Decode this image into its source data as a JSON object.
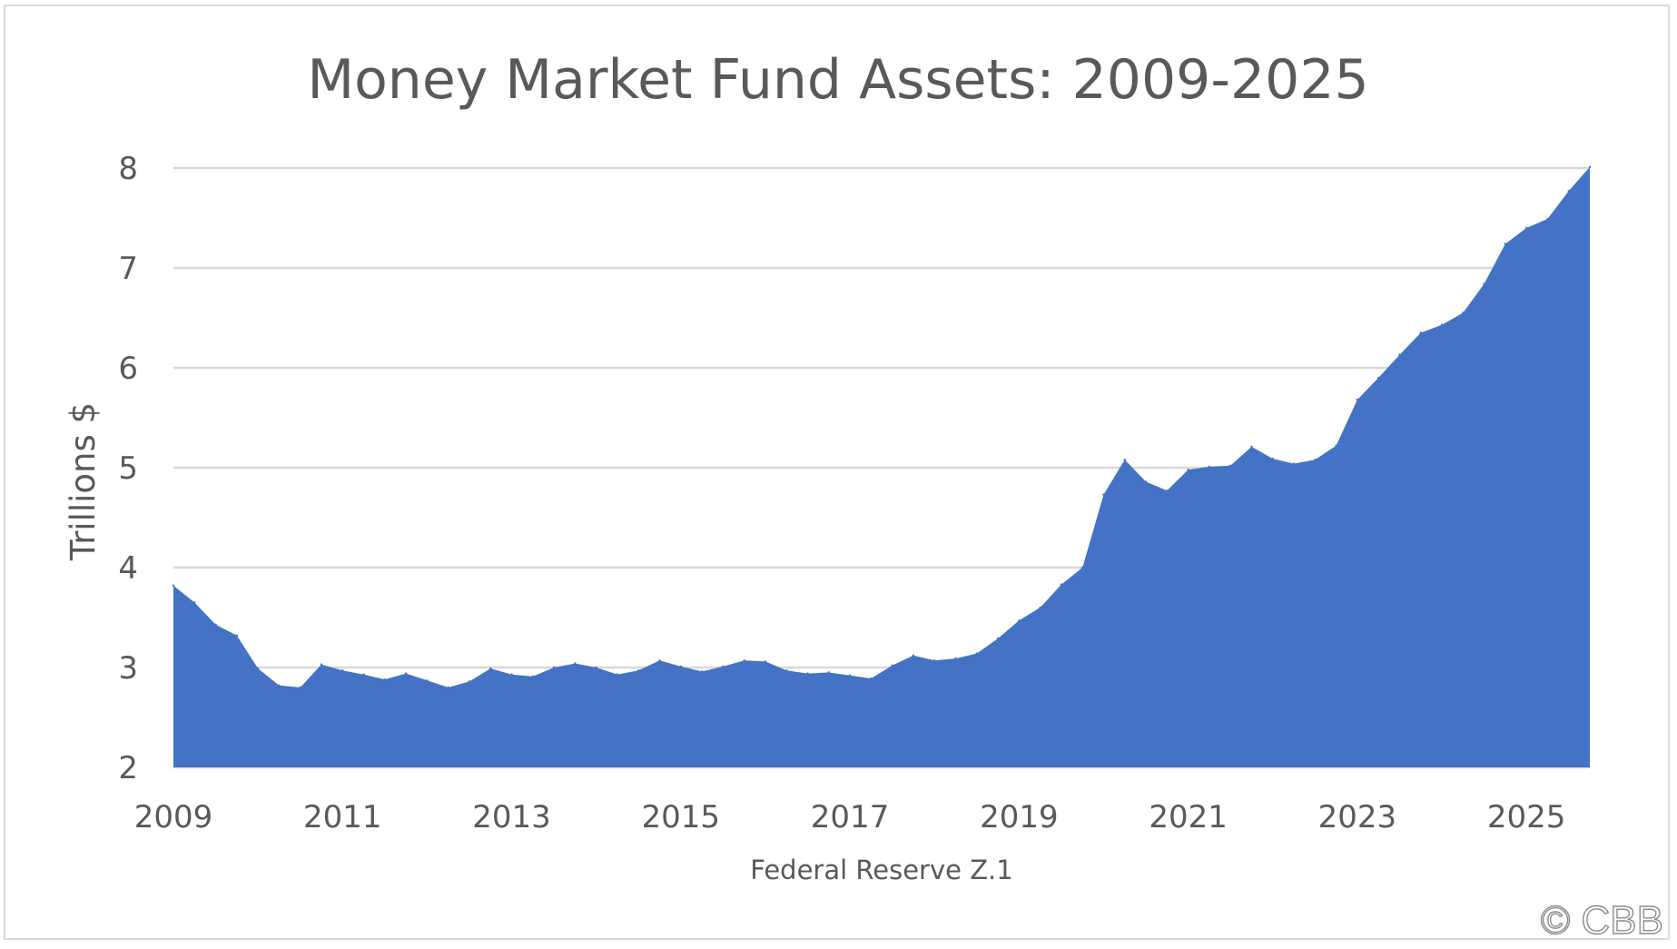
{
  "chart_data": {
    "type": "area",
    "title": "Money Market Fund Assets: 2009-2025",
    "xlabel": "Federal Reserve Z.1",
    "ylabel": "Trillions $",
    "x_ticks": [
      "2009",
      "2011",
      "2013",
      "2015",
      "2017",
      "2019",
      "2021",
      "2023",
      "2025"
    ],
    "y_ticks": [
      "2",
      "3",
      "4",
      "5",
      "6",
      "7",
      "8"
    ],
    "xlim": [
      2009.0,
      2025.75
    ],
    "ylim": [
      2,
      8
    ],
    "grid": "horizontal",
    "legend": "none",
    "color": "#4472c4",
    "x": [
      2009.0,
      2009.25,
      2009.5,
      2009.75,
      2010.0,
      2010.25,
      2010.5,
      2010.75,
      2011.0,
      2011.25,
      2011.5,
      2011.75,
      2012.0,
      2012.25,
      2012.5,
      2012.75,
      2013.0,
      2013.25,
      2013.5,
      2013.75,
      2014.0,
      2014.25,
      2014.5,
      2014.75,
      2015.0,
      2015.25,
      2015.5,
      2015.75,
      2016.0,
      2016.25,
      2016.5,
      2016.75,
      2017.0,
      2017.25,
      2017.5,
      2017.75,
      2018.0,
      2018.25,
      2018.5,
      2018.75,
      2019.0,
      2019.25,
      2019.5,
      2019.75,
      2020.0,
      2020.25,
      2020.5,
      2020.75,
      2021.0,
      2021.25,
      2021.5,
      2021.75,
      2022.0,
      2022.25,
      2022.5,
      2022.75,
      2023.0,
      2023.25,
      2023.5,
      2023.75,
      2024.0,
      2024.25,
      2024.5,
      2024.75,
      2025.0,
      2025.25,
      2025.5,
      2025.75
    ],
    "values": [
      3.82,
      3.65,
      3.43,
      3.32,
      2.99,
      2.82,
      2.8,
      3.03,
      2.97,
      2.93,
      2.88,
      2.94,
      2.87,
      2.8,
      2.86,
      2.99,
      2.93,
      2.91,
      3.0,
      3.04,
      3.0,
      2.93,
      2.97,
      3.07,
      3.01,
      2.96,
      3.01,
      3.07,
      3.06,
      2.97,
      2.94,
      2.95,
      2.92,
      2.89,
      3.02,
      3.12,
      3.07,
      3.09,
      3.14,
      3.29,
      3.47,
      3.6,
      3.83,
      4.0,
      4.73,
      5.08,
      4.86,
      4.77,
      4.98,
      5.01,
      5.02,
      5.21,
      5.09,
      5.04,
      5.08,
      5.22,
      5.68,
      5.9,
      6.13,
      6.35,
      6.43,
      6.55,
      6.84,
      7.24,
      7.4,
      7.49,
      7.77,
      8.01
    ]
  },
  "watermark": "© CBB"
}
